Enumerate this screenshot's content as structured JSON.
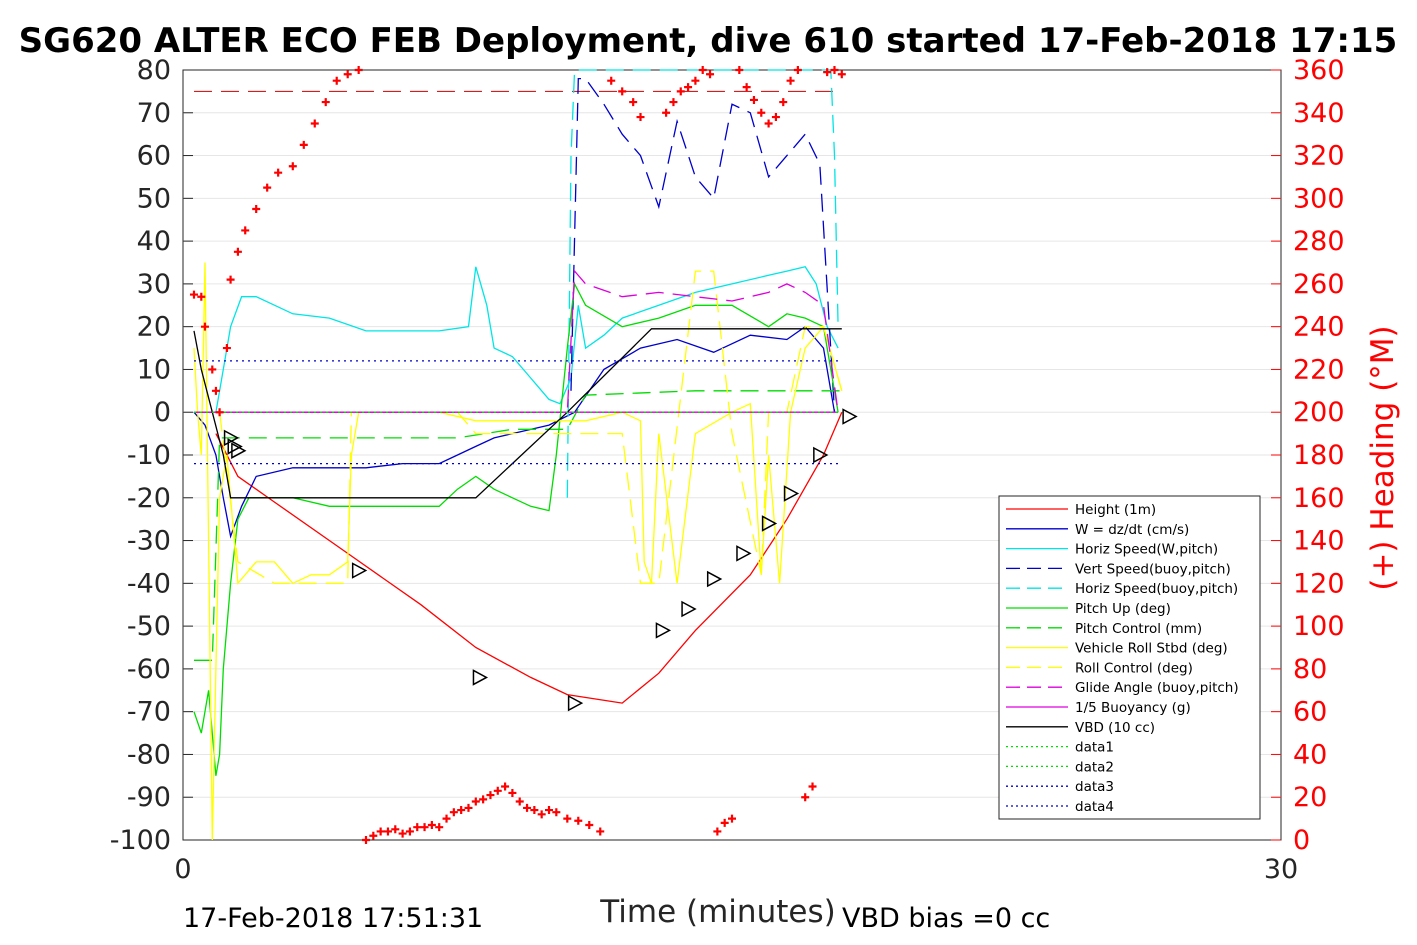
{
  "title": "SG620 ALTER ECO FEB Deployment, dive 610 started 17-Feb-2018 17:15",
  "footer": {
    "start_time": "17-Feb-2018 17:51:31",
    "vbd_bias": "VBD bias =0 cc"
  },
  "chart_data": {
    "type": "line",
    "xlabel": "Time (minutes)",
    "ylabel": "",
    "y2label": "(+) Heading (°M)",
    "xlim": [
      0,
      30
    ],
    "ylim": [
      -100,
      80
    ],
    "y2lim": [
      0,
      360
    ],
    "x_ticks": [
      "0",
      "30"
    ],
    "y_ticks": [
      "80",
      "70",
      "60",
      "50",
      "40",
      "30",
      "20",
      "10",
      "0",
      "-10",
      "-20",
      "-30",
      "-40",
      "-50",
      "-60",
      "-70",
      "-80",
      "-90",
      "-100"
    ],
    "y2_ticks": [
      "360",
      "340",
      "320",
      "300",
      "280",
      "260",
      "240",
      "220",
      "200",
      "180",
      "160",
      "140",
      "120",
      "100",
      "80",
      "60",
      "40",
      "20",
      "0"
    ],
    "grid": true,
    "legend_position": "bottom-right",
    "legend": [
      {
        "label": "Height (1m)",
        "color": "#ff0000",
        "dash": "solid"
      },
      {
        "label": "W = dz/dt (cm/s)",
        "color": "#0000cc",
        "dash": "solid"
      },
      {
        "label": "Horiz Speed(W,pitch)",
        "color": "#00e5e5",
        "dash": "solid"
      },
      {
        "label": "Vert Speed(buoy,pitch)",
        "color": "#0000cc",
        "dash": "dashed"
      },
      {
        "label": "Horiz Speed(buoy,pitch)",
        "color": "#00e5e5",
        "dash": "dashed"
      },
      {
        "label": "Pitch Up (deg)",
        "color": "#00dd00",
        "dash": "solid"
      },
      {
        "label": "Pitch Control (mm)",
        "color": "#00dd00",
        "dash": "dashed"
      },
      {
        "label": "Vehicle Roll Stbd (deg)",
        "color": "#ffff00",
        "dash": "solid"
      },
      {
        "label": "Roll Control (deg)",
        "color": "#ffff00",
        "dash": "dashed"
      },
      {
        "label": "Glide Angle (buoy,pitch)",
        "color": "#dd00dd",
        "dash": "dashed"
      },
      {
        "label": "1/5 Buoyancy (g)",
        "color": "#dd00dd",
        "dash": "solid"
      },
      {
        "label": "VBD (10 cc)",
        "color": "#000000",
        "dash": "solid"
      },
      {
        "label": "data1",
        "color": "#00dd00",
        "dash": "dotted"
      },
      {
        "label": "data2",
        "color": "#00dd00",
        "dash": "dotted"
      },
      {
        "label": "data3",
        "color": "#0000cc",
        "dash": "dotted"
      },
      {
        "label": "data4",
        "color": "#0000cc",
        "dash": "dotted"
      }
    ],
    "series": [
      {
        "name": "Height (1m)",
        "color": "#ff0000",
        "dash": "solid",
        "x": [
          0.9,
          1.5,
          2.5,
          4.5,
          6.5,
          8.0,
          9.5,
          10.5,
          12.0,
          13.0,
          14.0,
          15.5,
          16.5,
          17.5,
          18.0
        ],
        "y": [
          -5,
          -15,
          -21,
          -33,
          -45,
          -55,
          -62,
          -66,
          -68,
          -61,
          -51,
          -38,
          -25,
          -10,
          0
        ]
      },
      {
        "name": "W = dz/dt (cm/s)",
        "color": "#0000cc",
        "dash": "solid",
        "x": [
          0.3,
          0.6,
          0.9,
          1.1,
          1.3,
          1.6,
          2.0,
          3.0,
          4.0,
          5.0,
          6.0,
          7.0,
          7.5,
          8.0,
          8.5,
          9.0,
          10.0,
          10.7,
          11.5,
          12.5,
          13.5,
          14.5,
          15.5,
          16.5,
          17.0,
          17.5,
          17.8
        ],
        "y": [
          0,
          -3,
          -10,
          -20,
          -29,
          -22,
          -15,
          -13,
          -13,
          -13,
          -12,
          -12,
          -10,
          -8,
          -6,
          -5,
          -3,
          0,
          10,
          15,
          17,
          14,
          18,
          17,
          20,
          15,
          0
        ]
      },
      {
        "name": "Horiz Speed(W,pitch)",
        "color": "#00e5e5",
        "dash": "solid",
        "x": [
          0.9,
          1.1,
          1.3,
          1.6,
          2.0,
          3.0,
          4.0,
          5.0,
          6.0,
          7.0,
          7.8,
          8.0,
          8.3,
          8.5,
          9.0,
          9.5,
          10.0,
          10.3,
          10.6,
          10.8,
          11.0,
          11.5,
          12.0,
          13.0,
          14.0,
          15.0,
          16.0,
          16.5,
          17.0,
          17.3,
          17.6,
          17.9
        ],
        "y": [
          0,
          10,
          20,
          27,
          27,
          23,
          22,
          19,
          19,
          19,
          20,
          34,
          25,
          15,
          13,
          8,
          3,
          2,
          8,
          25,
          15,
          18,
          22,
          25,
          28,
          30,
          32,
          33,
          34,
          30,
          20,
          15
        ]
      },
      {
        "name": "Vert Speed(buoy,pitch)",
        "color": "#0000cc",
        "dash": "dashed",
        "x": [
          10.6,
          10.8,
          11.0,
          11.5,
          12.0,
          12.5,
          13.0,
          13.5,
          14.0,
          14.5,
          15.0,
          15.5,
          16.0,
          16.5,
          17.0,
          17.4,
          17.8
        ],
        "y": [
          5,
          78,
          78,
          72,
          65,
          60,
          48,
          68,
          55,
          50,
          72,
          70,
          55,
          60,
          65,
          58,
          0
        ]
      },
      {
        "name": "Horiz Speed(buoy,pitch)",
        "color": "#00e5e5",
        "dash": "dashed",
        "x": [
          10.5,
          10.6,
          10.7,
          17.7,
          17.8,
          17.9
        ],
        "y": [
          -20,
          60,
          80,
          80,
          60,
          20
        ]
      },
      {
        "name": "Pitch Up (deg)",
        "color": "#00dd00",
        "dash": "solid",
        "x": [
          0.3,
          0.5,
          0.7,
          0.9,
          1.0,
          1.1,
          1.3,
          1.5,
          1.8,
          2.0,
          3.0,
          4.0,
          5.0,
          6.0,
          7.0,
          7.5,
          8.0,
          8.5,
          9.0,
          9.5,
          10.0,
          10.2,
          10.5,
          10.7,
          11.0,
          12.0,
          13.0,
          14.0,
          15.0,
          16.0,
          16.5,
          17.0,
          17.5,
          17.9
        ],
        "y": [
          -70,
          -75,
          -65,
          -85,
          -80,
          -60,
          -40,
          -25,
          -20,
          -20,
          -20,
          -22,
          -22,
          -22,
          -22,
          -18,
          -15,
          -18,
          -20,
          -22,
          -23,
          -10,
          15,
          30,
          25,
          20,
          22,
          25,
          25,
          20,
          23,
          22,
          20,
          0
        ]
      },
      {
        "name": "Pitch Control (mm)",
        "color": "#00dd00",
        "dash": "dashed",
        "x": [
          0.3,
          0.8,
          1.0,
          1.5,
          2.0,
          5.0,
          7.5,
          9.0,
          10.5,
          11.0,
          14.0,
          17.0,
          18.0
        ],
        "y": [
          -58,
          -58,
          -6,
          -6,
          -6,
          -6,
          -6,
          -4,
          -4,
          4,
          5,
          5,
          5
        ]
      },
      {
        "name": "Vehicle Roll Stbd (deg)",
        "color": "#ffff00",
        "dash": "solid",
        "x": [
          0.3,
          0.4,
          0.5,
          0.6,
          0.7,
          0.8,
          0.9,
          1.0,
          1.2,
          1.5,
          2.0,
          2.5,
          3.0,
          3.5,
          4.0,
          4.5,
          4.6,
          4.8,
          5.0,
          6.0,
          7.0,
          8.0,
          9.0,
          10.0,
          11.0,
          12.0,
          12.5,
          12.6,
          12.8,
          13.0,
          13.5,
          14.0,
          15.0,
          15.5,
          15.8,
          16.0,
          16.3,
          16.6,
          17.0,
          17.5,
          18.0
        ],
        "y": [
          15,
          0,
          -10,
          35,
          -30,
          -100,
          -60,
          -20,
          -10,
          -40,
          -35,
          -35,
          -40,
          -38,
          -38,
          -35,
          -10,
          0,
          0,
          0,
          0,
          -2,
          -2,
          -2,
          -2,
          0,
          -2,
          -35,
          -40,
          -5,
          -40,
          -5,
          0,
          2,
          -38,
          -10,
          -40,
          0,
          15,
          20,
          5
        ]
      },
      {
        "name": "Roll Control (deg)",
        "color": "#ffff00",
        "dash": "dashed",
        "x": [
          0.3,
          1.0,
          1.5,
          2.5,
          4.5,
          4.6,
          7.5,
          8.0,
          10.5,
          12.0,
          12.5,
          13.0,
          14.0,
          14.5,
          15.0,
          15.8,
          16.0,
          16.5,
          17.0,
          17.5,
          18.0
        ],
        "y": [
          0,
          0,
          -35,
          -40,
          -40,
          0,
          0,
          -5,
          -5,
          -5,
          -40,
          -40,
          33,
          33,
          -5,
          -38,
          0,
          0,
          20,
          20,
          5
        ]
      },
      {
        "name": "Glide Angle (buoy,pitch)",
        "color": "#dd00dd",
        "dash": "dashed",
        "x": [
          0.3,
          10.5,
          10.7,
          11.0,
          12.0,
          13.0,
          14.0,
          15.0,
          16.0,
          16.5,
          17.0,
          17.5,
          17.9
        ],
        "y": [
          0,
          0,
          33,
          30,
          27,
          28,
          27,
          26,
          28,
          30,
          28,
          25,
          0
        ]
      },
      {
        "name": "1/5 Buoyancy (g)",
        "color": "#dd00dd",
        "dash": "solid",
        "x": [
          0.3,
          17.9
        ],
        "y": [
          0,
          0
        ]
      },
      {
        "name": "VBD (10 cc)",
        "color": "#000000",
        "dash": "solid",
        "x": [
          0.3,
          0.5,
          0.8,
          1.1,
          1.3,
          8.0,
          10.5,
          12.8,
          18.0
        ],
        "y": [
          19,
          10,
          0,
          -10,
          -20,
          -20,
          0,
          19.5,
          19.5
        ]
      },
      {
        "name": "data1",
        "color": "#00dd00",
        "dash": "dotted",
        "x": [
          0.3,
          18.0
        ],
        "y": [
          0,
          0
        ]
      },
      {
        "name": "data2",
        "color": "#00dd00",
        "dash": "dotted",
        "x": [
          0.3,
          18.0
        ],
        "y": [
          0,
          0
        ]
      },
      {
        "name": "data3",
        "color": "#0000cc",
        "dash": "dotted",
        "x": [
          0.3,
          18.0
        ],
        "y": [
          12,
          12
        ]
      },
      {
        "name": "data4",
        "color": "#0000cc",
        "dash": "dotted",
        "x": [
          0.3,
          18.0
        ],
        "y": [
          -12,
          -12
        ]
      }
    ],
    "reference_lines": [
      {
        "color": "#cc0000",
        "dash": "dashed",
        "y": 75,
        "x": [
          0.3,
          18.0
        ]
      }
    ],
    "heading": {
      "name": "(+) Heading",
      "color": "#ff0000",
      "axis": "right",
      "x": [
        0.3,
        0.5,
        0.6,
        0.8,
        0.9,
        1.0,
        1.2,
        1.3,
        1.5,
        1.7,
        2.0,
        2.3,
        2.6,
        3.0,
        3.3,
        3.6,
        3.9,
        4.2,
        4.5,
        4.8,
        5.0,
        5.2,
        5.4,
        5.6,
        5.8,
        6.0,
        6.2,
        6.4,
        6.6,
        6.8,
        7.0,
        7.2,
        7.4,
        7.6,
        7.8,
        8.0,
        8.2,
        8.4,
        8.6,
        8.8,
        9.0,
        9.2,
        9.4,
        9.6,
        9.8,
        10.0,
        10.2,
        10.5,
        10.8,
        11.1,
        11.4,
        11.7,
        12.0,
        12.3,
        12.5,
        13.2,
        13.4,
        13.6,
        13.8,
        14.0,
        14.2,
        14.4,
        14.6,
        14.8,
        15.0,
        15.2,
        15.4,
        15.6,
        15.8,
        16.0,
        16.2,
        16.4,
        16.6,
        16.8,
        17.0,
        17.2,
        17.6,
        17.8,
        18.0
      ],
      "y": [
        255,
        254,
        240,
        220,
        210,
        200,
        230,
        262,
        275,
        285,
        295,
        305,
        312,
        315,
        325,
        335,
        345,
        355,
        358,
        360,
        0,
        2,
        4,
        4,
        5,
        3,
        4,
        6,
        6,
        7,
        6,
        10,
        13,
        14,
        15,
        18,
        19,
        21,
        23,
        25,
        22,
        18,
        15,
        14,
        12,
        14,
        13,
        10,
        9,
        7,
        4,
        355,
        350,
        345,
        338,
        340,
        345,
        350,
        352,
        355,
        360,
        358,
        4,
        8,
        10,
        360,
        352,
        346,
        340,
        335,
        338,
        345,
        355,
        360,
        20,
        25,
        359,
        360,
        358
      ]
    },
    "markers": {
      "symbol": "triangle",
      "points": [
        {
          "x": 1.3,
          "y": -6
        },
        {
          "x": 1.4,
          "y": -8
        },
        {
          "x": 1.5,
          "y": -9
        },
        {
          "x": 4.8,
          "y": -37
        },
        {
          "x": 8.1,
          "y": -62
        },
        {
          "x": 10.7,
          "y": -68
        },
        {
          "x": 13.1,
          "y": -51
        },
        {
          "x": 13.8,
          "y": -46
        },
        {
          "x": 14.5,
          "y": -39
        },
        {
          "x": 15.3,
          "y": -33
        },
        {
          "x": 16.0,
          "y": -26
        },
        {
          "x": 16.6,
          "y": -19
        },
        {
          "x": 17.4,
          "y": -10
        },
        {
          "x": 18.2,
          "y": -1
        }
      ]
    }
  }
}
